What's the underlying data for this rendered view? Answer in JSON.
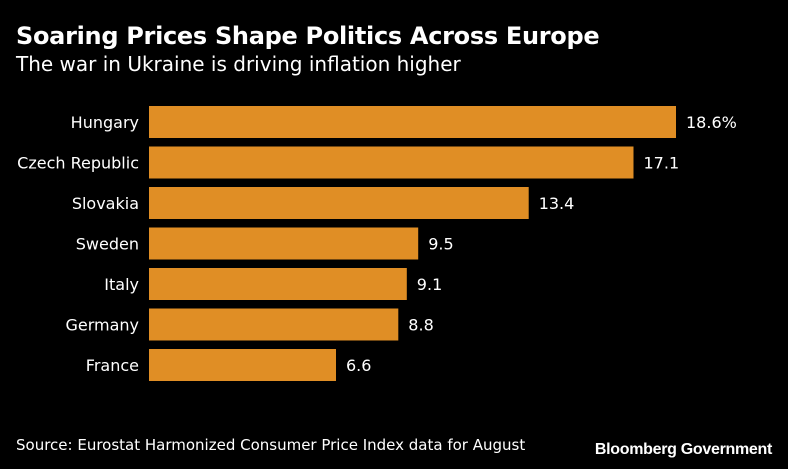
{
  "chart_data": {
    "type": "bar",
    "orientation": "horizontal",
    "title": "Soaring Prices Shape Politics Across Europe",
    "subtitle": "The war in Ukraine is driving inflation higher",
    "categories": [
      "Hungary",
      "Czech Republic",
      "Slovakia",
      "Sweden",
      "Italy",
      "Germany",
      "France"
    ],
    "values": [
      18.6,
      17.1,
      13.4,
      9.5,
      9.1,
      8.8,
      6.6
    ],
    "value_labels": [
      "18.6%",
      "17.1",
      "13.4",
      "9.5",
      "9.1",
      "8.8",
      "6.6"
    ],
    "xlabel": "",
    "ylabel": "",
    "xlim": [
      0,
      18.6
    ],
    "grid": false,
    "bar_color": "#e08e25"
  },
  "footer": {
    "source": "Source: Eurostat Harmonized Consumer Price Index data for August",
    "brand": "Bloomberg Government"
  },
  "colors": {
    "background": "#000000",
    "text": "#ffffff",
    "bar": "#e08e25"
  }
}
